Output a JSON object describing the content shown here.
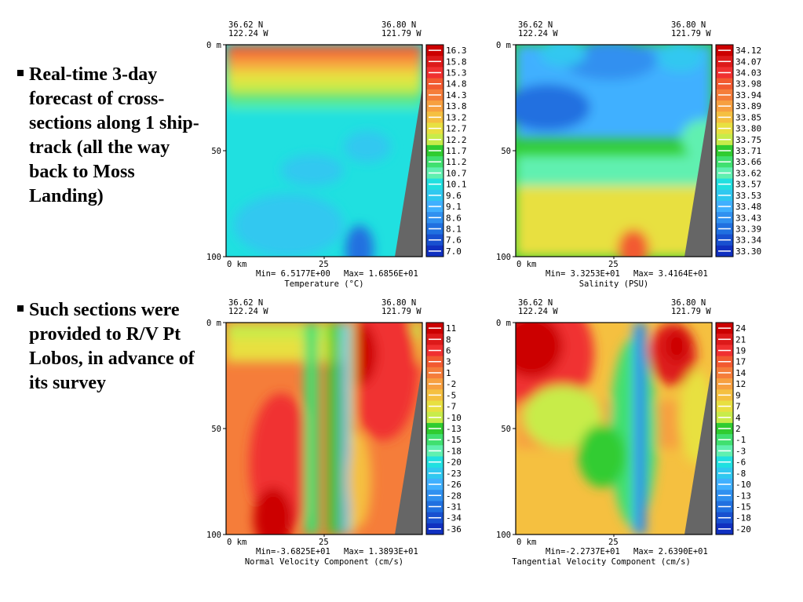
{
  "bullets": [
    "Real-time 3-day forecast of cross-sections along 1 ship-track (all the way back to Moss Landing)",
    "Such sections were provided to R/V Pt Lobos, in advance of its survey"
  ],
  "chart_data": [
    {
      "type": "heatmap",
      "variable": "temperature",
      "corner_left": [
        "36.62 N",
        "122.24 W"
      ],
      "corner_right": [
        "36.80 N",
        "121.79 W"
      ],
      "y_ticks": [
        "0 m",
        "50",
        "100"
      ],
      "x_ticks": [
        "0 km",
        "25"
      ],
      "min_label": "Min= 6.5177E+00",
      "max_label": "Max= 1.6856E+01",
      "xlabel": "Temperature (°C)",
      "colorbar": [
        "16.3",
        "15.8",
        "15.3",
        "14.8",
        "14.3",
        "13.8",
        "13.2",
        "12.7",
        "12.2",
        "11.7",
        "11.2",
        "10.7",
        "10.1",
        "9.6",
        "9.1",
        "8.6",
        "8.1",
        "7.6",
        "7.0"
      ]
    },
    {
      "type": "heatmap",
      "variable": "salinity",
      "corner_left": [
        "36.62 N",
        "122.24 W"
      ],
      "corner_right": [
        "36.80 N",
        "121.79 W"
      ],
      "y_ticks": [
        "0 m",
        "50",
        "100"
      ],
      "x_ticks": [
        "0 km",
        "25"
      ],
      "min_label": "Min= 3.3253E+01",
      "max_label": "Max= 3.4164E+01",
      "xlabel": "Salinity (PSU)",
      "colorbar": [
        "34.12",
        "34.07",
        "34.03",
        "33.98",
        "33.94",
        "33.89",
        "33.85",
        "33.80",
        "33.75",
        "33.71",
        "33.66",
        "33.62",
        "33.57",
        "33.53",
        "33.48",
        "33.43",
        "33.39",
        "33.34",
        "33.30"
      ]
    },
    {
      "type": "heatmap",
      "variable": "normal_velocity",
      "corner_left": [
        "36.62 N",
        "122.24 W"
      ],
      "corner_right": [
        "36.80 N",
        "121.79 W"
      ],
      "y_ticks": [
        "0 m",
        "50",
        "100"
      ],
      "x_ticks": [
        "0 km",
        "25"
      ],
      "min_label": "Min=-3.6825E+01",
      "max_label": "Max= 1.3893E+01",
      "xlabel": "Normal Velocity Component (cm/s)",
      "colorbar": [
        "11",
        "8",
        "6",
        "3",
        "1",
        "-2",
        "-5",
        "-7",
        "-10",
        "-13",
        "-15",
        "-18",
        "-20",
        "-23",
        "-26",
        "-28",
        "-31",
        "-34",
        "-36"
      ]
    },
    {
      "type": "heatmap",
      "variable": "tangential_velocity",
      "corner_left": [
        "36.62 N",
        "122.24 W"
      ],
      "corner_right": [
        "36.80 N",
        "121.79 W"
      ],
      "y_ticks": [
        "0 m",
        "50",
        "100"
      ],
      "x_ticks": [
        "0 km",
        "25"
      ],
      "min_label": "Min=-2.2737E+01",
      "max_label": "Max= 2.6390E+01",
      "xlabel": "Tangential Velocity Component (cm/s)",
      "colorbar": [
        "24",
        "21",
        "19",
        "17",
        "14",
        "12",
        "9",
        "7",
        "4",
        "2",
        "-1",
        "-3",
        "-6",
        "-8",
        "-10",
        "-13",
        "-15",
        "-18",
        "-20"
      ]
    }
  ],
  "colors": {
    "scale": [
      "#cc0000",
      "#dd1a1a",
      "#f03030",
      "#f25a30",
      "#f57d3a",
      "#f7a040",
      "#f5c040",
      "#e8e040",
      "#c8ec4a",
      "#30cc30",
      "#40e070",
      "#60f0b0",
      "#20e0e0",
      "#30c8f0",
      "#40b0ff",
      "#3090f0",
      "#2070e0",
      "#1850d0",
      "#1030c0"
    ],
    "land": "#666666"
  }
}
